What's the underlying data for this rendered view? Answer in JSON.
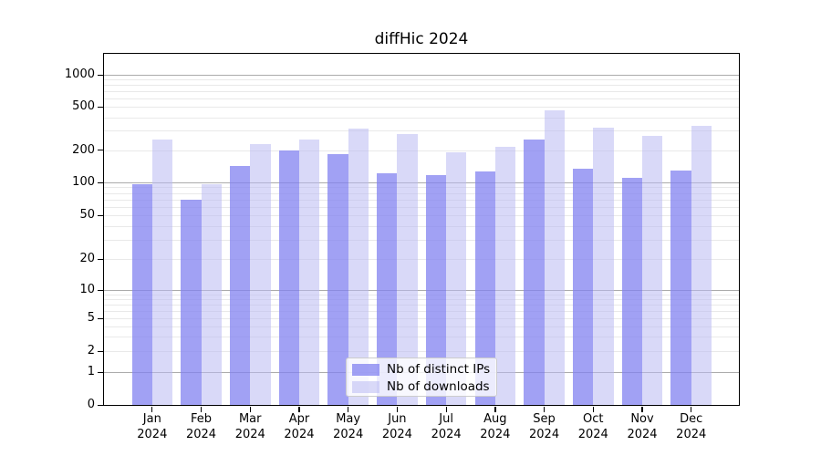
{
  "title": "diffHic 2024",
  "legend": {
    "items": [
      {
        "label": "Nb of distinct IPs"
      },
      {
        "label": "Nb of downloads"
      }
    ]
  },
  "colors": {
    "distinct_ips_bar": "rgba(130,130,240,0.75)",
    "downloads_bar": "rgba(185,185,243,0.55)",
    "major_grid": "#ababab",
    "minor_grid": "#e9e9e9"
  },
  "chart_data": {
    "type": "bar",
    "title": "diffHic 2024",
    "categories": [
      "Jan 2024",
      "Feb 2024",
      "Mar 2024",
      "Apr 2024",
      "May 2024",
      "Jun 2024",
      "Jul 2024",
      "Aug 2024",
      "Sep 2024",
      "Oct 2024",
      "Nov 2024",
      "Dec 2024"
    ],
    "series": [
      {
        "name": "Nb of distinct IPs",
        "color": "rgba(130,130,240,0.75)",
        "values": [
          97,
          69,
          143,
          197,
          183,
          121,
          117,
          126,
          248,
          134,
          110,
          129
        ]
      },
      {
        "name": "Nb of downloads",
        "color": "rgba(185,185,243,0.55)",
        "values": [
          248,
          97,
          227,
          248,
          316,
          281,
          190,
          214,
          465,
          322,
          270,
          335
        ]
      }
    ],
    "yscale": "symlog",
    "yticks": [
      0,
      1,
      2,
      5,
      10,
      20,
      50,
      100,
      200,
      500,
      1000
    ],
    "ylim": [
      0,
      1600
    ],
    "grid": true,
    "legend_position": "lower center inside plot",
    "xlabel": "",
    "ylabel": ""
  }
}
